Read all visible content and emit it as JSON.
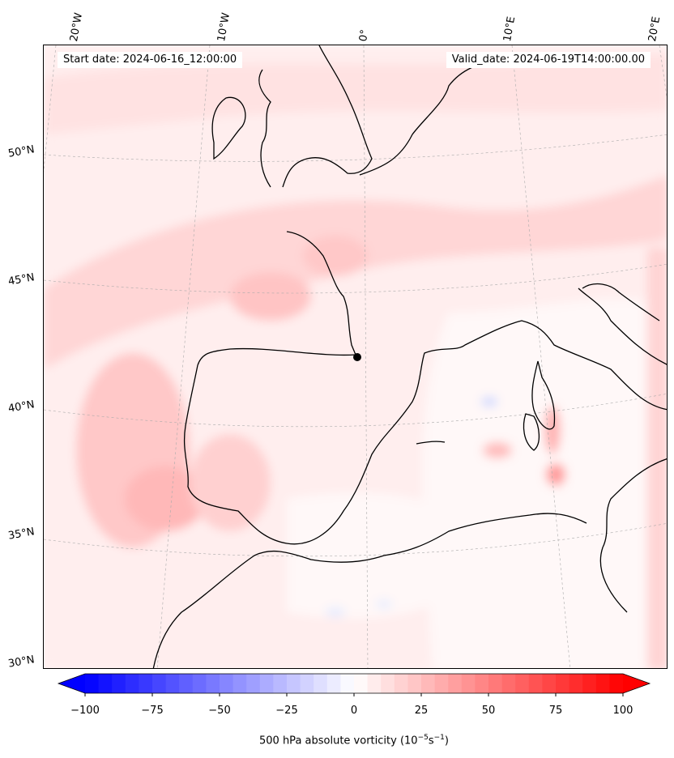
{
  "start_date": "Start date: 2024-06-16_12:00:00",
  "valid_date": "Valid_date: 2024-06-19T14:00:00.00",
  "longitude_labels": [
    "20°W",
    "10°W",
    "0°",
    "10°E",
    "20°E"
  ],
  "latitude_labels": [
    "50°N",
    "45°N",
    "40°N",
    "35°N",
    "30°N"
  ],
  "colorbar": {
    "ticks": [
      "−100",
      "−75",
      "−50",
      "−25",
      "0",
      "25",
      "50",
      "75",
      "100"
    ],
    "label_prefix": "500 hPa absolute vorticity (10",
    "label_exp1": "−5",
    "label_mid": "s",
    "label_exp2": "−1",
    "label_suffix": ")",
    "min": -100,
    "max": 100,
    "neg_color": "#0000ff",
    "pos_color": "#ff0000"
  },
  "colors": {
    "field_background": "#fff5f5",
    "coastline": "#000000",
    "gridline": "#aaaaaa"
  }
}
